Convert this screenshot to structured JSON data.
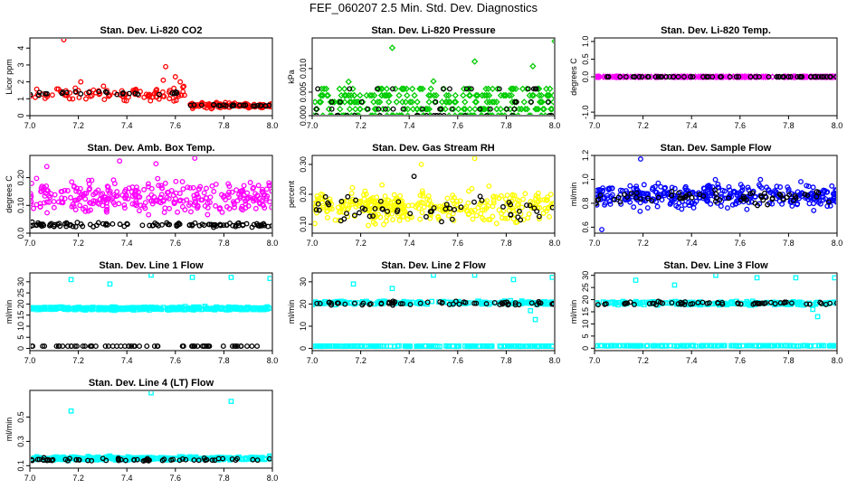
{
  "page": {
    "title": "FEF_060207  2.5 Min. Std. Dev. Diagnostics"
  },
  "chart_data": [
    {
      "type": "scatter",
      "title": "Stan. Dev. Li-820 CO2",
      "ylabel": "Licor ppm",
      "xlim": [
        7.0,
        8.0
      ],
      "xticks": [
        7.0,
        7.2,
        7.4,
        7.6,
        7.8,
        8.0
      ],
      "ylim": [
        0,
        4.6
      ],
      "yticks": [
        0,
        1,
        2,
        3,
        4
      ],
      "series": [
        {
          "name": "colored",
          "color": "#ff0000",
          "shape": "circle",
          "segments": [
            [
              7.0,
              7.65,
              1.3,
              0.35
            ],
            [
              7.66,
              8.0,
              0.6,
              0.15
            ]
          ],
          "n": 190,
          "outliers": [
            [
              7.14,
              4.5
            ],
            [
              7.56,
              2.9
            ],
            [
              7.6,
              2.3
            ],
            [
              7.62,
              2.0
            ],
            [
              7.21,
              2.0
            ],
            [
              7.55,
              2.1
            ]
          ]
        },
        {
          "name": "black",
          "color": "#000000",
          "shape": "circle",
          "segments": [
            [
              7.0,
              7.65,
              1.35,
              0.12
            ],
            [
              7.66,
              8.0,
              0.6,
              0.05
            ]
          ],
          "n": 50,
          "outliers": []
        }
      ]
    },
    {
      "type": "scatter",
      "title": "Stan. Dev. Li-820 Pressure",
      "ylabel": "kPa",
      "xlim": [
        7.0,
        8.0
      ],
      "xticks": [
        7.0,
        7.2,
        7.4,
        7.6,
        7.8,
        8.0
      ],
      "ylim": [
        0,
        0.0165
      ],
      "yticks": [
        0.0,
        0.005,
        0.01
      ],
      "yticklabels": [
        "0.000",
        "0.005",
        "0.010"
      ],
      "series": [
        {
          "name": "colored",
          "color": "#00cc00",
          "shape": "diamond",
          "levels": [
            0.0,
            0.0014,
            0.0029,
            0.0043,
            0.0057
          ],
          "weights": [
            0.22,
            0.18,
            0.24,
            0.2,
            0.16
          ],
          "n": 300,
          "outliers": [
            [
              7.33,
              0.0144
            ],
            [
              7.67,
              0.0115
            ],
            [
              7.91,
              0.0105
            ],
            [
              8.0,
              0.0158
            ],
            [
              7.15,
              0.0072
            ],
            [
              7.5,
              0.0073
            ]
          ]
        },
        {
          "name": "black",
          "color": "#000000",
          "shape": "circle",
          "levels": [
            0.0,
            0.0014,
            0.0029,
            0.0057
          ],
          "weights": [
            0.45,
            0.2,
            0.15,
            0.2
          ],
          "n": 55,
          "outliers": []
        }
      ]
    },
    {
      "type": "scatter",
      "title": "Stan. Dev. Li-820 Temp.",
      "ylabel": "degrees C",
      "xlim": [
        7.0,
        8.0
      ],
      "xticks": [
        7.0,
        7.2,
        7.4,
        7.6,
        7.8,
        8.0
      ],
      "ylim": [
        -1.1,
        1.1
      ],
      "yticks": [
        -1.0,
        0.0,
        0.5,
        1.0
      ],
      "yticklabels": [
        "-1.0",
        "0.0",
        "0.5",
        "1.0"
      ],
      "series": [
        {
          "name": "colored",
          "color": "#ff00ff",
          "shape": "diamond",
          "segments": [
            [
              7.0,
              8.0,
              0.0,
              0.0
            ]
          ],
          "n": 200,
          "outliers": []
        },
        {
          "name": "black",
          "color": "#000000",
          "shape": "circle",
          "segments": [
            [
              7.0,
              8.0,
              0.0,
              0.0
            ]
          ],
          "n": 60,
          "outliers": []
        }
      ]
    },
    {
      "type": "scatter",
      "title": "Stan. Dev. Amb. Box Temp.",
      "ylabel": "degrees C",
      "xlim": [
        7.0,
        8.0
      ],
      "xticks": [
        7.0,
        7.2,
        7.4,
        7.6,
        7.8,
        8.0
      ],
      "ylim": [
        0.0,
        0.28
      ],
      "yticks": [
        0.0,
        0.1,
        0.2
      ],
      "yticklabels": [
        "0.0",
        "0.10",
        "0.20"
      ],
      "series": [
        {
          "name": "colored",
          "color": "#ff00ff",
          "shape": "circle",
          "segments": [
            [
              7.0,
              8.0,
              0.13,
              0.05
            ]
          ],
          "n": 320,
          "outliers": [
            [
              7.37,
              0.26
            ],
            [
              7.68,
              0.27
            ],
            [
              7.07,
              0.24
            ],
            [
              7.52,
              0.25
            ]
          ]
        },
        {
          "name": "black",
          "color": "#000000",
          "shape": "circle",
          "segments": [
            [
              7.0,
              8.0,
              0.03,
              0.008
            ]
          ],
          "n": 110,
          "outliers": []
        }
      ]
    },
    {
      "type": "scatter",
      "title": "Stan. Dev. Gas Stream RH",
      "ylabel": "percent",
      "xlim": [
        7.0,
        8.0
      ],
      "xticks": [
        7.0,
        7.2,
        7.4,
        7.6,
        7.8,
        8.0
      ],
      "ylim": [
        0.07,
        0.33
      ],
      "yticks": [
        0.1,
        0.2,
        0.3
      ],
      "yticklabels": [
        "0.10",
        "0.20",
        "0.30"
      ],
      "series": [
        {
          "name": "colored",
          "color": "#ffff00",
          "shape": "circle",
          "segments": [
            [
              7.0,
              8.0,
              0.16,
              0.045
            ]
          ],
          "n": 330,
          "outliers": [
            [
              7.67,
              0.32
            ],
            [
              7.45,
              0.3
            ]
          ]
        },
        {
          "name": "black",
          "color": "#000000",
          "shape": "circle",
          "segments": [
            [
              7.0,
              8.0,
              0.15,
              0.04
            ]
          ],
          "n": 55,
          "outliers": [
            [
              7.42,
              0.26
            ]
          ]
        }
      ]
    },
    {
      "type": "scatter",
      "title": "Stan. Dev. Sample Flow",
      "ylabel": "ml/min",
      "xlim": [
        7.0,
        8.0
      ],
      "xticks": [
        7.0,
        7.2,
        7.4,
        7.6,
        7.8,
        8.0
      ],
      "ylim": [
        0.55,
        1.2
      ],
      "yticks": [
        0.6,
        0.8,
        1.0,
        1.2
      ],
      "yticklabels": [
        "0.6",
        "0.8",
        "1.0",
        "1.2"
      ],
      "series": [
        {
          "name": "colored",
          "color": "#0000ff",
          "shape": "circle",
          "segments": [
            [
              7.0,
              8.0,
              0.86,
              0.09
            ]
          ],
          "n": 360,
          "outliers": [
            [
              7.19,
              1.17
            ],
            [
              7.03,
              0.58
            ]
          ]
        },
        {
          "name": "black",
          "color": "#000000",
          "shape": "circle",
          "segments": [
            [
              7.0,
              8.0,
              0.85,
              0.05
            ]
          ],
          "n": 70,
          "outliers": []
        }
      ]
    },
    {
      "type": "scatter",
      "title": "Stan. Dev. Line 1 Flow",
      "ylabel": "ml/min",
      "xlim": [
        7.0,
        8.0
      ],
      "xticks": [
        7.0,
        7.2,
        7.4,
        7.6,
        7.8,
        8.0
      ],
      "ylim": [
        -1,
        34
      ],
      "yticks": [
        0,
        5,
        10,
        15,
        20,
        25,
        30
      ],
      "series": [
        {
          "name": "colored",
          "color": "#00ffff",
          "shape": "square",
          "segments": [
            [
              7.0,
              8.0,
              18.0,
              0.6
            ]
          ],
          "n": 360,
          "outliers": [
            [
              7.17,
              31
            ],
            [
              7.33,
              29
            ],
            [
              7.5,
              33
            ],
            [
              7.67,
              32
            ],
            [
              7.83,
              32
            ],
            [
              7.99,
              31.5
            ]
          ]
        },
        {
          "name": "black",
          "color": "#000000",
          "shape": "circle",
          "segments": [
            [
              7.0,
              8.0,
              1.0,
              0.0
            ]
          ],
          "n": 60,
          "outliers": []
        }
      ]
    },
    {
      "type": "scatter",
      "title": "Stan. Dev. Line 2 Flow",
      "ylabel": "ml/min",
      "xlim": [
        7.0,
        8.0
      ],
      "xticks": [
        7.0,
        7.2,
        7.4,
        7.6,
        7.8,
        8.0
      ],
      "ylim": [
        -1,
        34
      ],
      "yticks": [
        0,
        10,
        20,
        30
      ],
      "series": [
        {
          "name": "colored",
          "color": "#00ffff",
          "shape": "square",
          "segments": [
            [
              7.0,
              8.0,
              1.0,
              0.1
            ],
            [
              7.0,
              8.0,
              20.5,
              0.7
            ]
          ],
          "n": 340,
          "outliers": [
            [
              7.17,
              29
            ],
            [
              7.33,
              27
            ],
            [
              7.5,
              33
            ],
            [
              7.67,
              33
            ],
            [
              7.83,
              31
            ],
            [
              7.99,
              32
            ],
            [
              7.92,
              13
            ],
            [
              7.9,
              17
            ]
          ]
        },
        {
          "name": "black",
          "color": "#000000",
          "shape": "circle",
          "segments": [
            [
              7.0,
              8.0,
              20.3,
              0.8
            ]
          ],
          "n": 60,
          "outliers": []
        }
      ]
    },
    {
      "type": "scatter",
      "title": "Stan. Dev. Line 3 Flow",
      "ylabel": "ml/min",
      "xlim": [
        7.0,
        8.0
      ],
      "xticks": [
        7.0,
        7.2,
        7.4,
        7.6,
        7.8,
        8.0
      ],
      "ylim": [
        -1,
        31
      ],
      "yticks": [
        0,
        5,
        10,
        15,
        20,
        25,
        30
      ],
      "series": [
        {
          "name": "colored",
          "color": "#00ffff",
          "shape": "square",
          "segments": [
            [
              7.0,
              8.0,
              1.0,
              0.1
            ],
            [
              7.0,
              8.0,
              18.5,
              0.7
            ]
          ],
          "n": 340,
          "outliers": [
            [
              7.17,
              28
            ],
            [
              7.33,
              26
            ],
            [
              7.5,
              30
            ],
            [
              7.67,
              29
            ],
            [
              7.83,
              29
            ],
            [
              7.99,
              29
            ],
            [
              7.92,
              13
            ],
            [
              7.9,
              16
            ]
          ]
        },
        {
          "name": "black",
          "color": "#000000",
          "shape": "circle",
          "segments": [
            [
              7.0,
              8.0,
              18.5,
              0.6
            ]
          ],
          "n": 60,
          "outliers": []
        }
      ]
    },
    {
      "type": "scatter",
      "title": "Stan. Dev. Line 4 (LT) Flow",
      "ylabel": "ml/min",
      "xlim": [
        7.0,
        8.0
      ],
      "xticks": [
        7.0,
        7.2,
        7.4,
        7.6,
        7.8,
        8.0
      ],
      "ylim": [
        0.08,
        0.72
      ],
      "yticks": [
        0.1,
        0.3,
        0.5
      ],
      "yticklabels": [
        "0.1",
        "0.3",
        "0.5"
      ],
      "series": [
        {
          "name": "colored",
          "color": "#00ffff",
          "shape": "square",
          "segments": [
            [
              7.0,
              8.0,
              0.16,
              0.012
            ]
          ],
          "n": 300,
          "outliers": [
            [
              7.17,
              0.55
            ],
            [
              7.5,
              0.7
            ],
            [
              7.83,
              0.63
            ],
            [
              7.33,
              0.18
            ],
            [
              7.99,
              0.18
            ]
          ]
        },
        {
          "name": "black",
          "color": "#000000",
          "shape": "circle",
          "segments": [
            [
              7.0,
              8.0,
              0.15,
              0.01
            ]
          ],
          "n": 60,
          "outliers": []
        }
      ]
    }
  ]
}
